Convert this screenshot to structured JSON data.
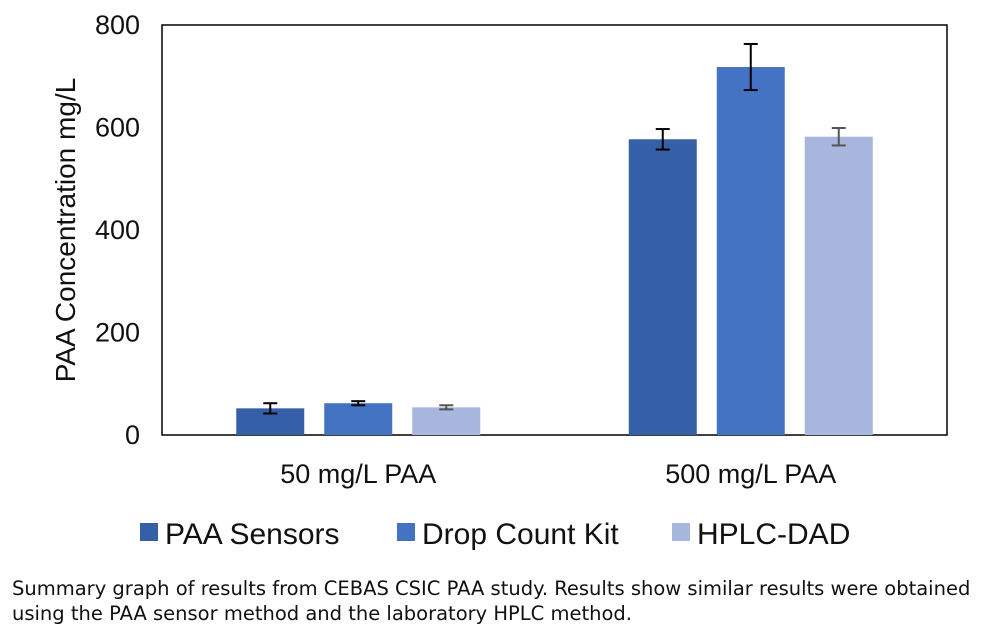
{
  "chart_data": {
    "type": "bar",
    "categories": [
      "50 mg/L PAA",
      "500 mg/L PAA"
    ],
    "series": [
      {
        "name": "PAA Sensors",
        "color": "#355fa6",
        "values": [
          52,
          577
        ],
        "errors": [
          10,
          20
        ]
      },
      {
        "name": "Drop Count Kit",
        "color": "#4473c4",
        "values": [
          62,
          718
        ],
        "errors": [
          4,
          45
        ]
      },
      {
        "name": "HPLC-DAD",
        "color": "#a7b6dc",
        "values": [
          54,
          582
        ],
        "errors": [
          4,
          17
        ]
      }
    ],
    "title": "",
    "xlabel": "",
    "ylabel": "PAA Concentration mg/L",
    "ylim": [
      0,
      800
    ],
    "yticks": [
      0,
      200,
      400,
      600,
      800
    ],
    "grid": false,
    "legend_position": "bottom"
  },
  "caption": "Summary graph of results from CEBAS CSIC PAA study. Results show similar results were obtained using the PAA sensor method and the laboratory HPLC method."
}
